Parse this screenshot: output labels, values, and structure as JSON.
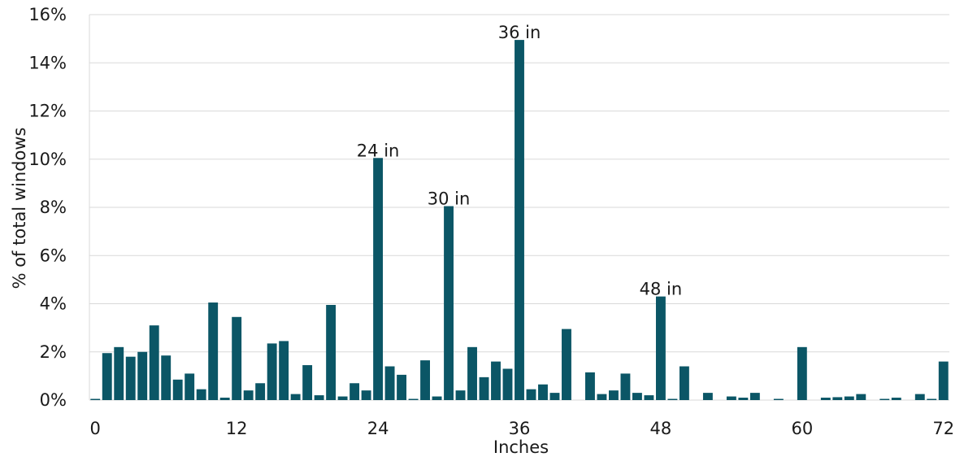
{
  "chart_data": {
    "type": "bar",
    "title": "",
    "xlabel": "Inches",
    "ylabel": "% of total windows",
    "ylim": [
      0,
      16
    ],
    "y_ticks": [
      "0%",
      "2%",
      "4%",
      "6%",
      "8%",
      "10%",
      "12%",
      "14%",
      "16%"
    ],
    "y_tick_values": [
      0,
      2,
      4,
      6,
      8,
      10,
      12,
      14,
      16
    ],
    "x_ticks": [
      "0",
      "12",
      "24",
      "36",
      "48",
      "60",
      "72"
    ],
    "x_tick_values": [
      0,
      12,
      24,
      36,
      48,
      60,
      72
    ],
    "grid": true,
    "bar_color": "#0b5666",
    "x": [
      0,
      1,
      2,
      3,
      4,
      5,
      6,
      7,
      8,
      9,
      10,
      11,
      12,
      13,
      14,
      15,
      16,
      17,
      18,
      19,
      20,
      21,
      22,
      23,
      24,
      25,
      26,
      27,
      28,
      29,
      30,
      31,
      32,
      33,
      34,
      35,
      36,
      37,
      38,
      39,
      40,
      41,
      42,
      43,
      44,
      45,
      46,
      47,
      48,
      49,
      50,
      51,
      52,
      53,
      54,
      55,
      56,
      57,
      58,
      59,
      60,
      61,
      62,
      63,
      64,
      65,
      66,
      67,
      68,
      69,
      70,
      71,
      72
    ],
    "values": [
      0.05,
      1.95,
      2.2,
      1.8,
      2.0,
      3.1,
      1.85,
      0.85,
      1.1,
      0.45,
      4.05,
      0.1,
      3.45,
      0.4,
      0.7,
      2.35,
      2.45,
      0.25,
      1.45,
      0.2,
      3.95,
      0.15,
      0.7,
      0.4,
      10.05,
      1.4,
      1.05,
      0.05,
      1.65,
      0.15,
      8.05,
      0.4,
      2.2,
      0.95,
      1.6,
      1.3,
      14.95,
      0.45,
      0.65,
      0.3,
      2.95,
      0.0,
      1.15,
      0.25,
      0.4,
      1.1,
      0.3,
      0.2,
      4.3,
      0.05,
      1.4,
      0.0,
      0.3,
      0.0,
      0.15,
      0.1,
      0.3,
      0.0,
      0.05,
      0.0,
      2.2,
      0.0,
      0.1,
      0.12,
      0.15,
      0.25,
      0.0,
      0.05,
      0.1,
      0.0,
      0.25,
      0.05,
      1.6
    ],
    "annotations": [
      {
        "x": 24,
        "text": "24 in"
      },
      {
        "x": 30,
        "text": "30 in"
      },
      {
        "x": 36,
        "text": "36 in"
      },
      {
        "x": 48,
        "text": "48 in"
      }
    ]
  }
}
